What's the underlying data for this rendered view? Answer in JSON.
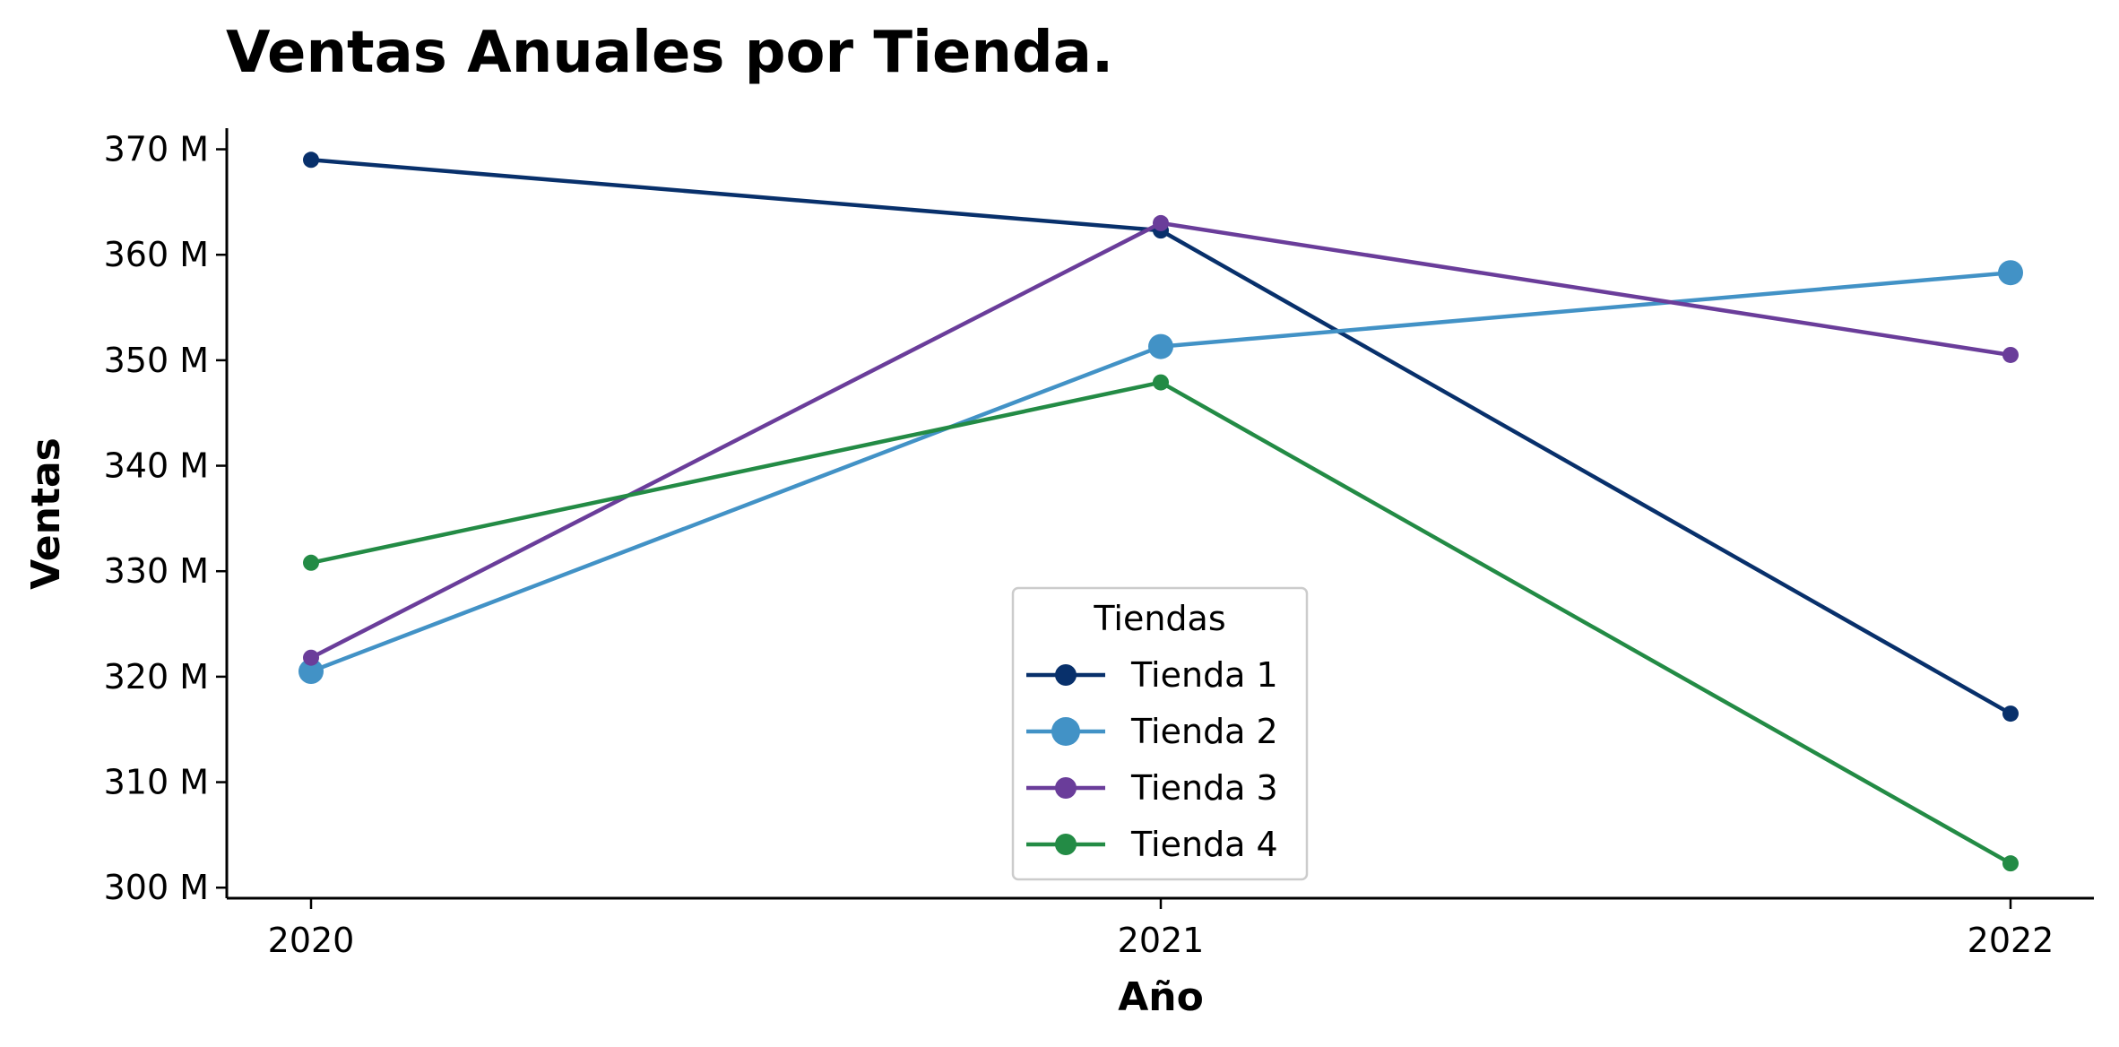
{
  "chart_data": {
    "type": "line",
    "title": "Ventas Anuales por Tienda.",
    "xlabel": "Año",
    "ylabel": "Ventas",
    "x": [
      "2020",
      "2021",
      "2022"
    ],
    "ylim": [
      299,
      372
    ],
    "y_ticks": [
      300,
      310,
      320,
      330,
      340,
      350,
      360,
      370
    ],
    "y_tick_labels": [
      "300 M",
      "310 M",
      "320 M",
      "330 M",
      "340 M",
      "350 M",
      "360 M",
      "370 M"
    ],
    "y_unit": "M",
    "grid": false,
    "legend": {
      "title": "Tiendas",
      "placement": "lower-center"
    },
    "series": [
      {
        "name": "Tienda 1",
        "color": "#08306b",
        "values": [
          369.0,
          362.3,
          316.5
        ],
        "marker": "small"
      },
      {
        "name": "Tienda 2",
        "color": "#4292c6",
        "values": [
          320.5,
          351.3,
          358.3
        ],
        "marker": "large"
      },
      {
        "name": "Tienda 3",
        "color": "#6a3d9a",
        "values": [
          321.8,
          363.0,
          350.5
        ],
        "marker": "small"
      },
      {
        "name": "Tienda 4",
        "color": "#238b45",
        "values": [
          330.8,
          347.9,
          302.3
        ],
        "marker": "small"
      }
    ]
  }
}
